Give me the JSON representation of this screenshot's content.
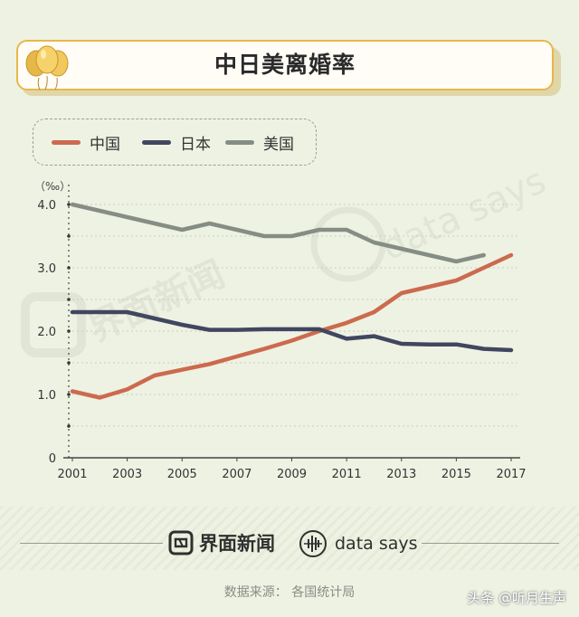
{
  "title": "中日美离婚率",
  "unit": "（‰）",
  "legend": [
    {
      "name": "中国",
      "color": "#cc6a4e"
    },
    {
      "name": "日本",
      "color": "#414660"
    },
    {
      "name": "美国",
      "color": "#868d84"
    }
  ],
  "chart_data": {
    "type": "line",
    "title": "中日美离婚率",
    "ylabel": "（‰）",
    "xlabel": "",
    "ylim": [
      0,
      4.2
    ],
    "xlim": [
      2001,
      2017
    ],
    "x_ticks": [
      "2001",
      "2003",
      "2005",
      "2007",
      "2009",
      "2011",
      "2013",
      "2015",
      "2017"
    ],
    "y_ticks": [
      "0",
      "1.0",
      "2.0",
      "3.0",
      "4.0"
    ],
    "grid": true,
    "legend_position": "top-left",
    "series": [
      {
        "name": "中国",
        "color": "#cc6a4e",
        "x": [
          2001,
          2002,
          2003,
          2004,
          2005,
          2006,
          2007,
          2008,
          2009,
          2010,
          2011,
          2012,
          2013,
          2014,
          2015,
          2016,
          2017
        ],
        "y": [
          1.05,
          0.95,
          1.08,
          1.3,
          1.39,
          1.48,
          1.6,
          1.72,
          1.85,
          2.0,
          2.13,
          2.3,
          2.6,
          2.7,
          2.8,
          3.0,
          3.2
        ]
      },
      {
        "name": "日本",
        "color": "#414660",
        "x": [
          2001,
          2002,
          2003,
          2004,
          2005,
          2006,
          2007,
          2008,
          2009,
          2010,
          2011,
          2012,
          2013,
          2014,
          2015,
          2016,
          2017
        ],
        "y": [
          2.3,
          2.3,
          2.3,
          2.2,
          2.1,
          2.02,
          2.02,
          2.03,
          2.03,
          2.03,
          1.88,
          1.92,
          1.8,
          1.79,
          1.79,
          1.72,
          1.7
        ]
      },
      {
        "name": "美国",
        "color": "#868d84",
        "x": [
          2001,
          2002,
          2003,
          2004,
          2005,
          2006,
          2007,
          2008,
          2009,
          2010,
          2011,
          2012,
          2013,
          2014,
          2015,
          2016
        ],
        "y": [
          4.0,
          3.9,
          3.8,
          3.7,
          3.6,
          3.7,
          3.6,
          3.5,
          3.5,
          3.6,
          3.6,
          3.4,
          3.3,
          3.2,
          3.1,
          3.2
        ]
      }
    ]
  },
  "footer": {
    "brand_cn": "界面新闻",
    "brand_en": "data says",
    "source": "数据来源：  各国统计局",
    "watermark": "头条 @听月生声"
  }
}
